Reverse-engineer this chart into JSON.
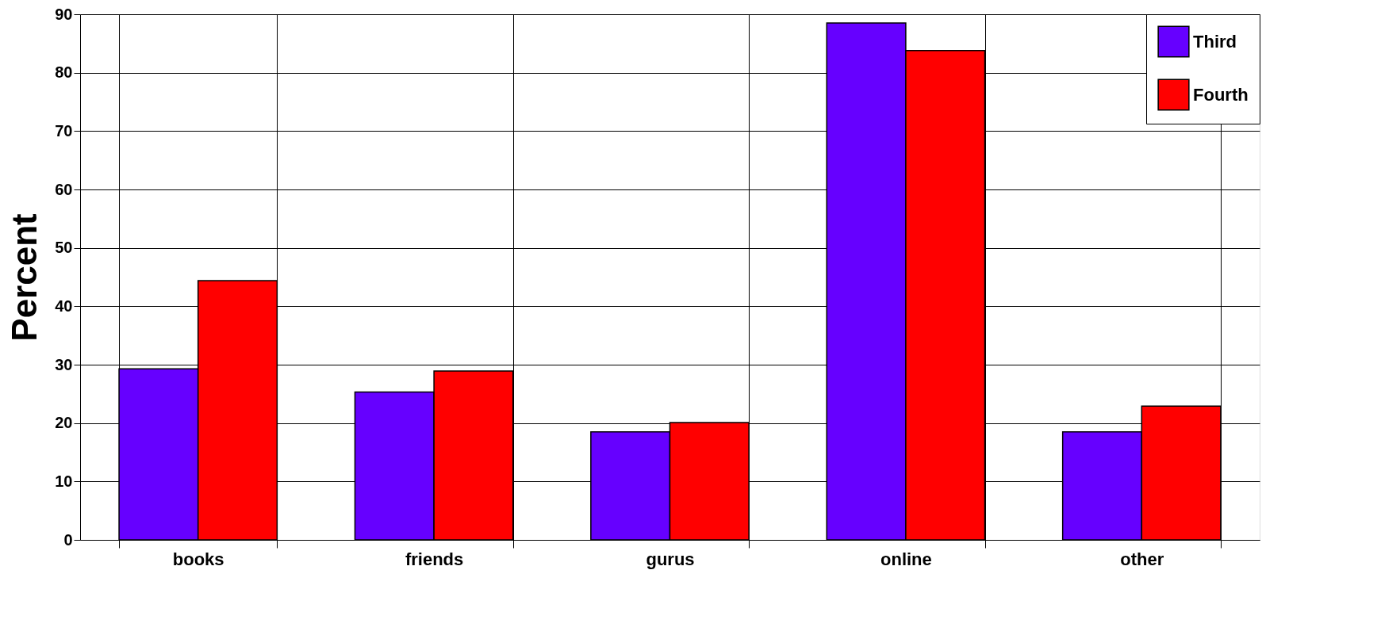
{
  "chart_data": {
    "type": "bar",
    "ylabel": "Percent",
    "categories": [
      "books",
      "friends",
      "gurus",
      "online",
      "other"
    ],
    "series": [
      {
        "name": "Third",
        "color": "#6600ff",
        "values": [
          29.3,
          25.3,
          18.5,
          88.5,
          18.5
        ]
      },
      {
        "name": "Fourth",
        "color": "#ff0000",
        "values": [
          44.4,
          28.9,
          20.1,
          83.8,
          22.9
        ]
      }
    ],
    "ylim": [
      0,
      90
    ],
    "yticks": [
      0,
      10,
      20,
      30,
      40,
      50,
      60,
      70,
      80,
      90
    ],
    "grid": true,
    "legend": "top right"
  }
}
